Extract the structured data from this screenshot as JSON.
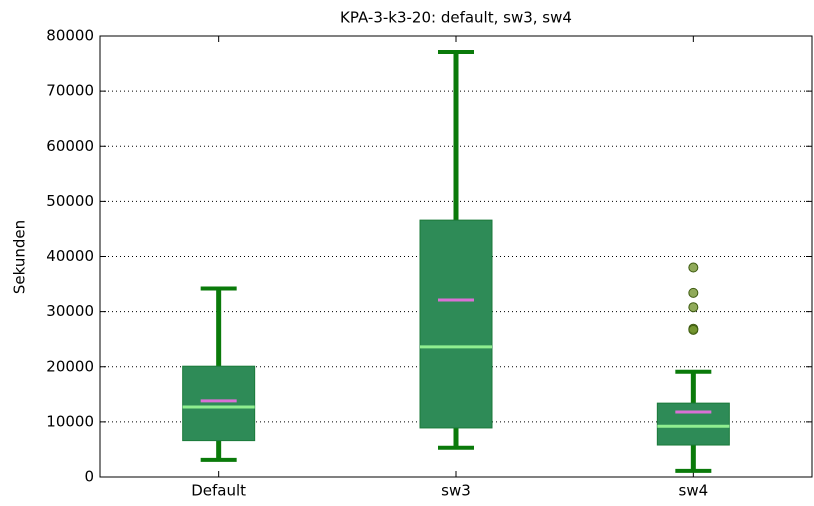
{
  "chart_data": {
    "type": "box",
    "title": "KPA-3-k3-20: default, sw3, sw4",
    "ylabel": "Sekunden",
    "categories": [
      "Default",
      "sw3",
      "sw4"
    ],
    "whislo": [
      3100,
      5300,
      1100
    ],
    "q1": [
      6600,
      8900,
      5800
    ],
    "med": [
      12700,
      23600,
      9200
    ],
    "mean": [
      13800,
      32100,
      11800
    ],
    "q3": [
      20100,
      46600,
      13400
    ],
    "whishi": [
      34200,
      77100,
      19100
    ],
    "fliers": [
      [],
      [],
      [
        38000,
        33400,
        30800,
        26900,
        26700
      ]
    ],
    "box_color": "#2e8b57",
    "whisker_color": "#0a7a0a",
    "median_color": "#90ee90",
    "mean_color": "#da70d6",
    "flier_color": "#6b8e23",
    "ylim": [
      0,
      80000
    ],
    "yticks": [
      0,
      10000,
      20000,
      30000,
      40000,
      50000,
      60000,
      70000,
      80000
    ],
    "grid": true
  }
}
